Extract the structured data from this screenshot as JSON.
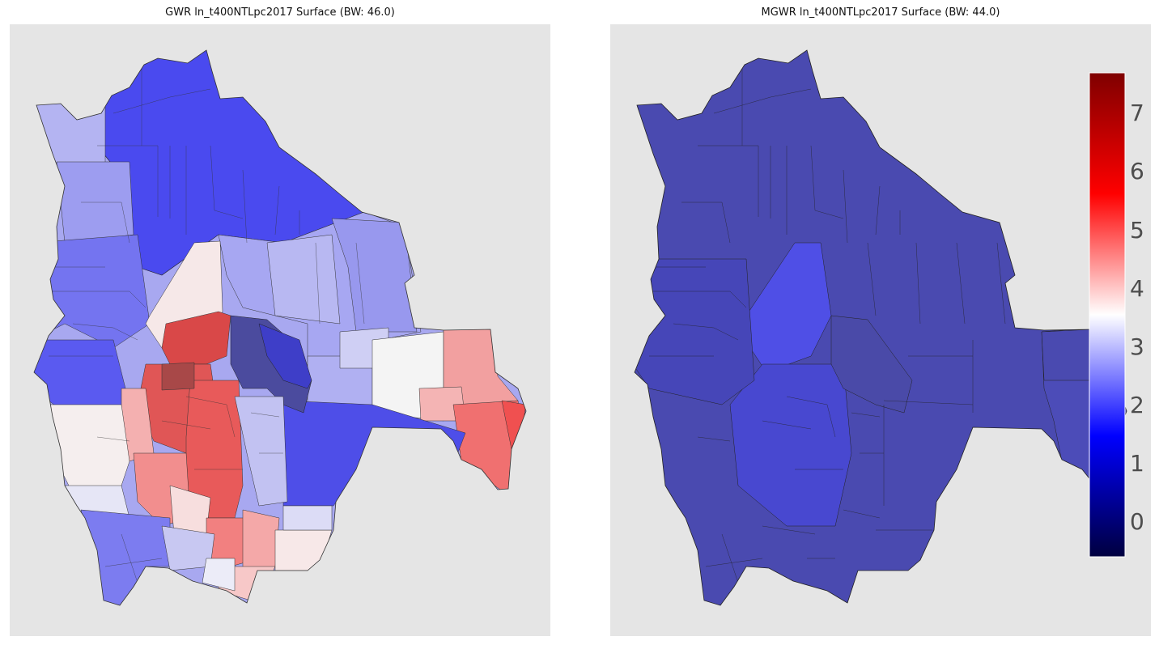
{
  "panels": [
    {
      "title": "GWR ln_t400NTLpc2017 Surface (BW: 46.0)"
    },
    {
      "title": "MGWR ln_t400NTLpc2017 Surface (BW: 44.0)"
    }
  ],
  "colorbar": {
    "colormap": "seismic",
    "range": [
      -0.6,
      7.7
    ],
    "ticks": [
      "0",
      "1",
      "2",
      "3",
      "4",
      "5",
      "6",
      "7"
    ],
    "colors": [
      "#00003f",
      "#0000ff",
      "#ffffff",
      "#ff0000",
      "#7f0000"
    ]
  },
  "colors": {
    "background": "#e5e5e5",
    "gwr_deep_blue": "#4a4aef",
    "gwr_mid_blue": "#6f6ff0",
    "gwr_light_blue": "#a8a8f0",
    "gwr_pale": "#e8e8f6",
    "gwr_pink": "#f4a3a3",
    "gwr_red": "#f25252",
    "gwr_dark_red": "#d94848",
    "gwr_slate": "#4b4b9e",
    "mgwr_blue": "#4a4ab0",
    "mgwr_bright": "#5050f0"
  }
}
